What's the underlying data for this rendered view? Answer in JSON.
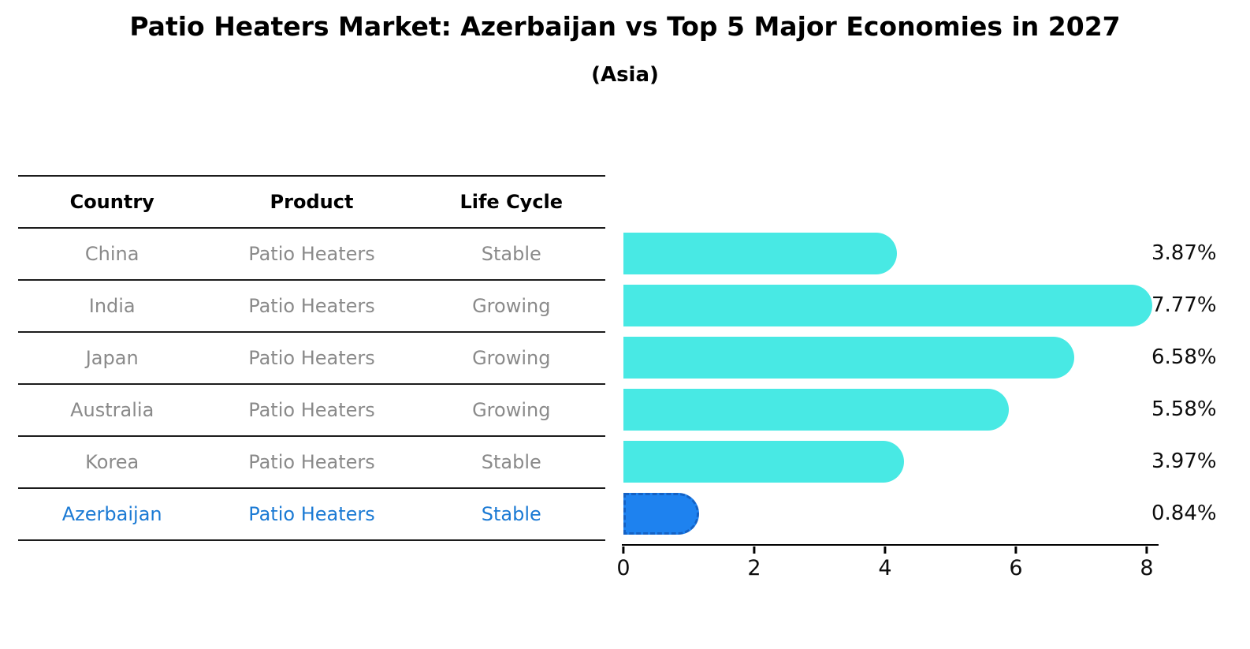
{
  "title": "Patio Heaters Market: Azerbaijan vs Top 5 Major Economies in 2027",
  "subtitle": "(Asia)",
  "table": {
    "headers": [
      "Country",
      "Product",
      "Life Cycle"
    ],
    "rows": [
      {
        "country": "China",
        "product": "Patio Heaters",
        "life_cycle": "Stable",
        "highlighted": false
      },
      {
        "country": "India",
        "product": "Patio Heaters",
        "life_cycle": "Growing",
        "highlighted": false
      },
      {
        "country": "Japan",
        "product": "Patio Heaters",
        "life_cycle": "Growing",
        "highlighted": false
      },
      {
        "country": "Australia",
        "product": "Patio Heaters",
        "life_cycle": "Growing",
        "highlighted": false
      },
      {
        "country": "Korea",
        "product": "Patio Heaters",
        "life_cycle": "Stable",
        "highlighted": false
      },
      {
        "country": "Azerbaijan",
        "product": "Patio Heaters",
        "life_cycle": "Stable",
        "highlighted": true
      }
    ]
  },
  "chart_data": {
    "type": "bar",
    "orientation": "horizontal",
    "title": "Patio Heaters Market: Azerbaijan vs Top 5 Major Economies in 2027",
    "subtitle": "(Asia)",
    "categories": [
      "China",
      "India",
      "Japan",
      "Australia",
      "Korea",
      "Azerbaijan"
    ],
    "values": [
      3.87,
      7.77,
      6.58,
      5.58,
      3.97,
      0.84
    ],
    "value_labels": [
      "3.87%",
      "7.77%",
      "6.58%",
      "5.58%",
      "3.97%",
      "0.84%"
    ],
    "xlim": [
      0,
      8
    ],
    "xticks": [
      "0",
      "2",
      "4",
      "6",
      "8"
    ],
    "grid": false,
    "legend": "none",
    "highlight_category": "Azerbaijan",
    "colors": {
      "default_bar": "#48e9e4",
      "highlight_bar": "#1e82ef",
      "highlight_border": "#1461c4",
      "highlight_text": "#1b7ad4",
      "row_text": "#8a8a8a",
      "axis": "#000000"
    }
  }
}
